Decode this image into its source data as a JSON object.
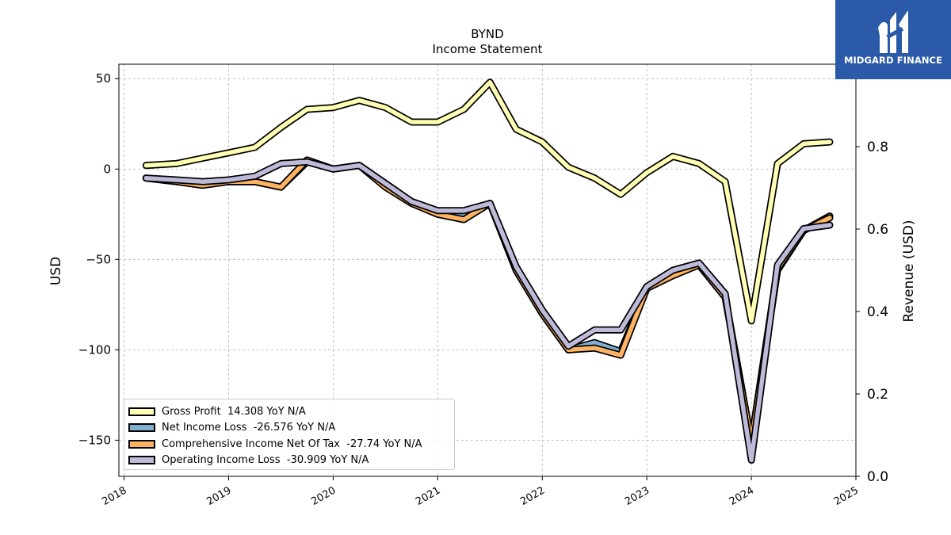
{
  "chart_data": {
    "type": "line",
    "title": "BYND",
    "subtitle": "Income Statement",
    "ylabel": "USD",
    "y2label": "Revenue (USD)",
    "ylim": [
      -170,
      58
    ],
    "y2lim": [
      0.0,
      1.0
    ],
    "yticks": [
      50,
      0,
      -50,
      -100,
      -150
    ],
    "ytick_labels": [
      "50",
      "0",
      "−50",
      "−100",
      "−150"
    ],
    "y2ticks": [
      0.8,
      0.6,
      0.4,
      0.2,
      0.0
    ],
    "y2tick_labels": [
      "0.8",
      "0.6",
      "0.4",
      "0.2",
      "0.0"
    ],
    "xlim": [
      2017.95,
      2025.0
    ],
    "xticks": [
      2018,
      2019,
      2020,
      2021,
      2022,
      2023,
      2024,
      2025
    ],
    "xtick_labels": [
      "2018",
      "2019",
      "2020",
      "2021",
      "2022",
      "2023",
      "2024",
      "2025"
    ],
    "grid": true,
    "legend_position": "lower-left",
    "x": [
      2018.21,
      2018.5,
      2018.75,
      2019.0,
      2019.25,
      2019.5,
      2019.75,
      2020.0,
      2020.25,
      2020.5,
      2020.75,
      2021.0,
      2021.25,
      2021.5,
      2021.75,
      2022.0,
      2022.25,
      2022.5,
      2022.75,
      2023.0,
      2023.25,
      2023.5,
      2023.75,
      2024.0,
      2024.25,
      2024.5,
      2024.75
    ],
    "series": [
      {
        "name": "Gross Profit  14.308 YoY N/A",
        "color": "#ffffb3",
        "values": [
          2,
          3,
          6,
          9,
          12,
          23,
          33,
          34,
          38,
          34,
          26,
          26,
          33,
          48,
          22,
          15,
          1,
          -5,
          -14,
          -2,
          7,
          3,
          -7,
          -84,
          3,
          14,
          15
        ]
      },
      {
        "name": "Net Income Loss  -26.576 YoY N/A",
        "color": "#80b1d3",
        "values": [
          -5,
          -7,
          -8,
          -7,
          -7,
          -10,
          4,
          0,
          2,
          -8,
          -18,
          -25,
          -25,
          -19,
          -56,
          -80,
          -100,
          -96,
          -101,
          -66,
          -58,
          -53,
          -71,
          -151,
          -56,
          -34,
          -26
        ]
      },
      {
        "name": "Comprehensive Income Net Of Tax  -27.74 YoY N/A",
        "color": "#fdb462",
        "values": [
          -5,
          -7,
          -9,
          -7,
          -7,
          -10,
          5,
          0,
          2,
          -10,
          -19,
          -25,
          -28,
          -19,
          -56,
          -80,
          -100,
          -99,
          -103,
          -66,
          -59,
          -53,
          -71,
          -151,
          -55,
          -34,
          -27
        ]
      },
      {
        "name": "Operating Income Loss  -30.909 YoY N/A",
        "color": "#bebada",
        "values": [
          -5,
          -6,
          -7,
          -6,
          -4,
          3,
          4,
          0,
          2,
          -8,
          -18,
          -23,
          -23,
          -19,
          -54,
          -78,
          -98,
          -89,
          -89,
          -65,
          -56,
          -52,
          -69,
          -161,
          -53,
          -33,
          -31
        ]
      }
    ]
  },
  "logo": {
    "text": "MIDGARD FINANCE"
  }
}
